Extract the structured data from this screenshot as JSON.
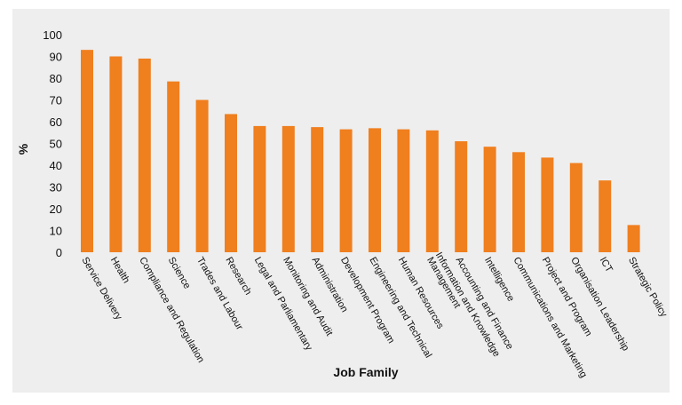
{
  "chart_data": {
    "type": "bar",
    "title": "",
    "xlabel": "Job Family",
    "ylabel": "%",
    "ylim": [
      0,
      100
    ],
    "yticks": [
      0,
      10,
      20,
      30,
      40,
      50,
      60,
      70,
      80,
      90,
      100
    ],
    "grid": false,
    "bar_color": "#F07F1E",
    "panel_color": "#EEEEEE",
    "categories": [
      "Service Delivery",
      "Health",
      "Compliance and Regulation",
      "Science",
      "Trades and Labour",
      "Research",
      "Legal and Parliamentary",
      "Monitoring and Audit",
      "Administration",
      "Development Program",
      "Engineering and Technical",
      "Human Resources",
      "Information and Knowledge Management",
      "Accounting and Finance",
      "Intelligence",
      "Communications and Marketing",
      "Project and Program",
      "Organisation Leadership",
      "ICT",
      "Strategic Policy"
    ],
    "category_lines": [
      [
        "Service Delivery"
      ],
      [
        "Health"
      ],
      [
        "Compliance and Regulation"
      ],
      [
        "Science"
      ],
      [
        "Trades and Labour"
      ],
      [
        "Research"
      ],
      [
        "Legal and Parliamentary"
      ],
      [
        "Monitoring and Audit"
      ],
      [
        "Administration"
      ],
      [
        "Development Program"
      ],
      [
        "Engineering and Technical"
      ],
      [
        "Human Resources"
      ],
      [
        "Information and Knowledge",
        "Management"
      ],
      [
        "Accounting and Finance"
      ],
      [
        "Intelligence"
      ],
      [
        "Communications and Marketing"
      ],
      [
        "Project and Program"
      ],
      [
        "Organisation Leadership"
      ],
      [
        "ICT"
      ],
      [
        "Strategic Policy"
      ]
    ],
    "values": [
      93,
      90,
      89,
      78.5,
      70,
      63.5,
      58,
      58,
      57.5,
      56.5,
      57,
      56.5,
      56,
      51,
      48.5,
      46,
      43.5,
      41,
      33,
      12.5
    ]
  }
}
